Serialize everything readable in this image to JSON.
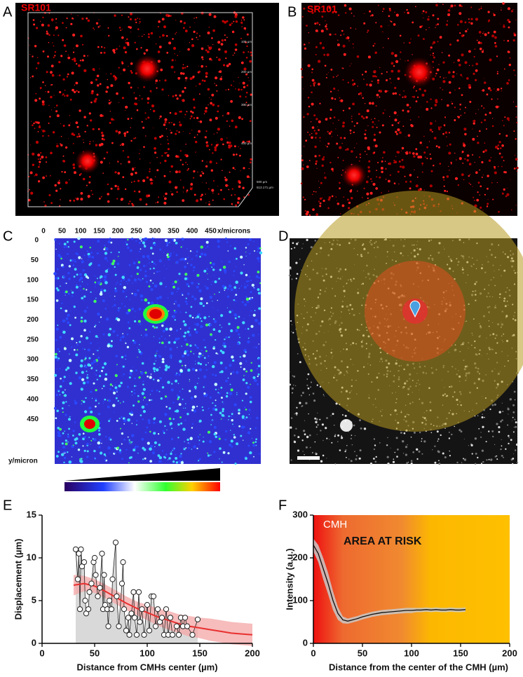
{
  "panel_a": {
    "label": "A",
    "stain": "SR101",
    "scale_labels": [
      "100 µm",
      "200 µm",
      "300 µm",
      "400 µm",
      "500 µm",
      "513.171 µm"
    ]
  },
  "panel_b": {
    "label": "B",
    "stain": "SR101"
  },
  "panel_c": {
    "label": "C",
    "xticks": [
      0,
      50,
      100,
      150,
      200,
      250,
      300,
      350,
      400,
      450
    ],
    "xlabel": "x/microns",
    "yticks": [
      0,
      50,
      100,
      150,
      200,
      250,
      300,
      350,
      400,
      450
    ],
    "ylabel": "y/micron"
  },
  "panel_d": {
    "label": "D"
  },
  "chart_data": [
    {
      "type": "scatter",
      "label": "E",
      "xlabel": "Distance from CMHs center (µm)",
      "ylabel": "Displacement (µm)",
      "xlim": [
        0,
        200
      ],
      "ylim": [
        0,
        15
      ],
      "xticks": [
        0,
        50,
        100,
        150,
        200
      ],
      "yticks": [
        0,
        5,
        10,
        15
      ],
      "color": "#222222",
      "area_color": "#d9d9d9",
      "x": [
        32,
        34,
        35,
        36,
        37,
        38,
        40,
        41,
        42,
        44,
        45,
        47,
        49,
        50,
        51,
        53,
        55,
        57,
        58,
        59,
        60,
        62,
        63,
        64,
        66,
        67,
        70,
        71,
        73,
        76,
        77,
        78,
        80,
        82,
        83,
        85,
        87,
        88,
        90,
        92,
        93,
        95,
        97,
        100,
        102,
        104,
        106,
        108,
        110,
        112,
        114,
        116,
        118,
        120,
        122,
        124,
        128,
        130,
        132,
        134,
        136,
        138,
        143,
        148
      ],
      "values": [
        11,
        7.5,
        10.5,
        4,
        11,
        9,
        9.5,
        5,
        3.5,
        4,
        6,
        7,
        9.5,
        10,
        8,
        5.5,
        6.5,
        10.5,
        4,
        8,
        4.5,
        4,
        2,
        5,
        4,
        7.5,
        11.8,
        5.5,
        2,
        7,
        9.5,
        4,
        1.5,
        3,
        1,
        3.5,
        6,
        3,
        1,
        6,
        2.5,
        4,
        1,
        4.5,
        1.5,
        5.5,
        5.5,
        2,
        4,
        2.5,
        3,
        1,
        4,
        1,
        3,
        1,
        2,
        1,
        3,
        2,
        3,
        2,
        1,
        2.8
      ],
      "fit": {
        "color": "#e8302f",
        "band_color": "#f4a6a6",
        "x": [
          30,
          40,
          50,
          60,
          70,
          80,
          90,
          100,
          110,
          120,
          130,
          140,
          150,
          160,
          170,
          180,
          190,
          200
        ],
        "values": [
          6.8,
          7,
          6.7,
          6.1,
          5.4,
          4.7,
          4.1,
          3.6,
          3.1,
          2.7,
          2.3,
          2,
          1.8,
          1.6,
          1.4,
          1.2,
          1.1,
          1
        ],
        "errors": [
          1.2,
          0.9,
          0.8,
          0.8,
          0.8,
          0.8,
          0.8,
          0.9,
          1,
          1.1,
          1.1,
          1.2,
          1.2,
          1.3,
          1.3,
          1.3,
          1.3,
          1.3
        ]
      }
    },
    {
      "type": "line",
      "label": "F",
      "xlabel": "Distance from the center of the CMH (µm)",
      "ylabel": "Intensity (a.u.)",
      "xlim": [
        0,
        200
      ],
      "ylim": [
        0,
        300
      ],
      "xticks": [
        0,
        50,
        100,
        150,
        200
      ],
      "yticks": [
        0,
        100,
        200,
        300
      ],
      "color": "#111111",
      "band_color": "#c8c8c8",
      "annotations": [
        "CMH",
        "AREA AT RISK"
      ],
      "x": [
        0,
        5,
        10,
        15,
        20,
        25,
        30,
        35,
        40,
        45,
        50,
        55,
        60,
        65,
        70,
        75,
        80,
        85,
        90,
        95,
        100,
        105,
        110,
        115,
        120,
        125,
        130,
        135,
        140,
        145,
        150,
        155
      ],
      "values": [
        230,
        210,
        175,
        140,
        100,
        70,
        55,
        52,
        55,
        58,
        62,
        65,
        68,
        70,
        72,
        73,
        74,
        75,
        76,
        77,
        77,
        78,
        78,
        79,
        78,
        79,
        78,
        78,
        79,
        78,
        78,
        79
      ],
      "errors": [
        15,
        20,
        25,
        25,
        22,
        15,
        8,
        6,
        6,
        6,
        6,
        6,
        6,
        6,
        6,
        6,
        6,
        6,
        6,
        6,
        6,
        5,
        5,
        5,
        5,
        5,
        5,
        5,
        5,
        5,
        5,
        5
      ]
    }
  ]
}
